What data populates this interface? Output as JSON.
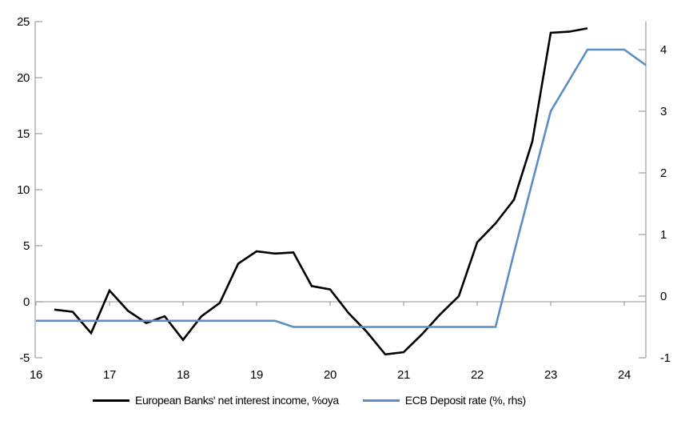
{
  "chart_data": {
    "type": "line",
    "title": "",
    "xlabel": "",
    "ylabel_left": "",
    "ylabel_right": "",
    "grid": "off",
    "legend_position": "bottom",
    "x_axis": {
      "tick_values": [
        16,
        17,
        18,
        19,
        20,
        21,
        22,
        23,
        24
      ],
      "tick_labels": [
        "16",
        "17",
        "18",
        "19",
        "20",
        "21",
        "22",
        "23",
        "24"
      ],
      "range": [
        16,
        24.3
      ]
    },
    "left_axis": {
      "tick_values": [
        25,
        20,
        15,
        10,
        5,
        0,
        -5
      ],
      "tick_labels": [
        "25",
        "20",
        "15",
        "10",
        "5",
        "0",
        "-5"
      ],
      "range": [
        -5,
        25
      ]
    },
    "right_axis": {
      "tick_values": [
        4,
        3,
        2,
        1,
        0,
        -1
      ],
      "tick_labels": [
        "4",
        "3",
        "2",
        "1",
        "0",
        "-1"
      ],
      "range": [
        -1,
        4.45
      ]
    },
    "series": [
      {
        "name": "European Banks' net interest income, %oya",
        "axis": "left",
        "color": "#000000",
        "width": 2.6,
        "x": [
          16.25,
          16.5,
          16.75,
          17.0,
          17.25,
          17.5,
          17.75,
          18.0,
          18.25,
          18.5,
          18.75,
          19.0,
          19.25,
          19.5,
          19.75,
          20.0,
          20.25,
          20.5,
          20.75,
          21.0,
          21.25,
          21.5,
          21.75,
          22.0,
          22.25,
          22.5,
          22.75,
          23.0,
          23.25,
          23.5
        ],
        "values": [
          -0.7,
          -0.9,
          -2.8,
          1.0,
          -0.8,
          -1.9,
          -1.3,
          -3.4,
          -1.3,
          -0.1,
          3.4,
          4.5,
          4.3,
          4.4,
          1.4,
          1.1,
          -1.0,
          -2.7,
          -4.7,
          -4.5,
          -2.9,
          -1.1,
          0.5,
          5.3,
          7.0,
          9.1,
          14.3,
          24.0,
          24.1,
          24.4
        ]
      },
      {
        "name": "ECB Deposit rate (%, rhs)",
        "axis": "right",
        "color": "#5b8ec4",
        "width": 2.6,
        "x": [
          16.0,
          16.25,
          16.5,
          16.75,
          17.0,
          17.25,
          17.5,
          17.75,
          18.0,
          18.25,
          18.5,
          18.75,
          19.0,
          19.25,
          19.5,
          19.75,
          20.0,
          20.25,
          20.5,
          20.75,
          21.0,
          21.25,
          21.5,
          21.75,
          22.0,
          22.25,
          22.5,
          22.75,
          23.0,
          23.25,
          23.5,
          23.75,
          24.0,
          24.3
        ],
        "values": [
          -0.4,
          -0.4,
          -0.4,
          -0.4,
          -0.4,
          -0.4,
          -0.4,
          -0.4,
          -0.4,
          -0.4,
          -0.4,
          -0.4,
          -0.4,
          -0.4,
          -0.5,
          -0.5,
          -0.5,
          -0.5,
          -0.5,
          -0.5,
          -0.5,
          -0.5,
          -0.5,
          -0.5,
          -0.5,
          -0.5,
          0.7,
          1.85,
          3.0,
          3.5,
          4.0,
          4.0,
          4.0,
          3.75
        ]
      }
    ],
    "colors": {
      "axis_line": "#a6a6a6",
      "zero_line": "#a6a6a6",
      "background": "#ffffff",
      "tick_text": "#000000"
    }
  }
}
